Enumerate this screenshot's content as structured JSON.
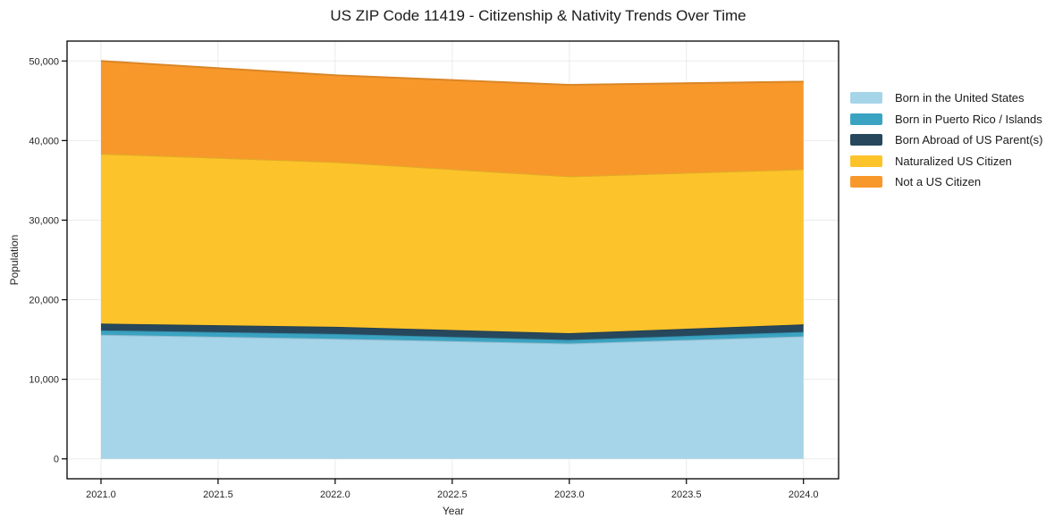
{
  "title": "US ZIP Code 11419 - Citizenship & Nativity Trends Over Time",
  "chart_data": {
    "type": "area",
    "stacked": true,
    "title": "US ZIP Code 11419 - Citizenship & Nativity Trends Over Time",
    "xlabel": "Year",
    "ylabel": "Population",
    "x": [
      2021,
      2022,
      2023,
      2024
    ],
    "series": [
      {
        "name": "Born in the United States",
        "color": "#A6D4E8",
        "values": [
          15600,
          15100,
          14500,
          15400
        ]
      },
      {
        "name": "Born in Puerto Rico / Islands",
        "color": "#3BA3C2",
        "values": [
          550,
          600,
          450,
          550
        ]
      },
      {
        "name": "Born Abroad of US Parent(s)",
        "color": "#27485C",
        "values": [
          850,
          900,
          850,
          950
        ]
      },
      {
        "name": "Naturalized US Citizen",
        "color": "#FDC32B",
        "values": [
          21350,
          20700,
          19700,
          19500
        ]
      },
      {
        "name": "Not a US Citizen",
        "color": "#F8982B",
        "values": [
          11650,
          10900,
          11500,
          11000
        ]
      }
    ],
    "stack_totals": [
      50000,
      48200,
      47000,
      47400
    ],
    "x_tick_labels": [
      "2021.0",
      "2021.5",
      "2022.0",
      "2022.5",
      "2023.0",
      "2023.5",
      "2024.0"
    ],
    "y_tick_labels": [
      "0",
      "10,000",
      "20,000",
      "30,000",
      "40,000",
      "50,000"
    ],
    "xlim": [
      2020.855,
      2024.15
    ],
    "ylim": [
      -2500,
      52500
    ],
    "grid": true,
    "grid_color": "#ebebeb",
    "spine_color": "#000000",
    "tick_label_color": "#262626",
    "legend_position": "right-outside"
  }
}
